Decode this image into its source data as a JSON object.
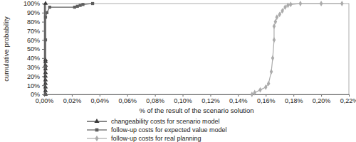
{
  "chart_data": {
    "type": "line",
    "x_label": "% of the result of the scenario solution",
    "y_label": "cumulative probability",
    "xlim": [
      0,
      0.22
    ],
    "xticks": [
      {
        "value": 0,
        "label": "0,00%"
      },
      {
        "value": 0.02,
        "label": "0,02%"
      },
      {
        "value": 0.04,
        "label": "0,04%"
      },
      {
        "value": 0.06,
        "label": "0,06%"
      },
      {
        "value": 0.08,
        "label": "0,08%"
      },
      {
        "value": 0.1,
        "label": "0,10%"
      },
      {
        "value": 0.12,
        "label": "0,12%"
      },
      {
        "value": 0.14,
        "label": "0,14%"
      },
      {
        "value": 0.16,
        "label": "0,16%"
      },
      {
        "value": 0.18,
        "label": "0,18%"
      },
      {
        "value": 0.2,
        "label": "0,20%"
      },
      {
        "value": 0.22,
        "label": "0,22%"
      }
    ],
    "ylim": [
      0,
      100
    ],
    "yticks": [
      {
        "value": 0,
        "label": "0%"
      },
      {
        "value": 10,
        "label": "10%"
      },
      {
        "value": 20,
        "label": "20%"
      },
      {
        "value": 30,
        "label": "30%"
      },
      {
        "value": 40,
        "label": "40%"
      },
      {
        "value": 50,
        "label": "50%"
      },
      {
        "value": 60,
        "label": "60%"
      },
      {
        "value": 70,
        "label": "70%"
      },
      {
        "value": 80,
        "label": "80%"
      },
      {
        "value": 90,
        "label": "90%"
      },
      {
        "value": 100,
        "label": "100%"
      }
    ],
    "grid": false,
    "legend": "bottom",
    "series": [
      {
        "name": "changeability costs for scenario model",
        "color": "#3a3a3a",
        "marker": "triangle",
        "line_style": "solid",
        "x": [
          0.001,
          0.001,
          0.001,
          0.001,
          0.001,
          0.001,
          0.001,
          0.001,
          0.001,
          0.001,
          0.001,
          0.001
        ],
        "values": [
          0,
          4,
          8,
          12,
          16,
          20,
          24,
          28,
          32,
          36,
          38,
          100
        ]
      },
      {
        "name": "follow-up costs for expected value model",
        "color": "#5e5e5e",
        "marker": "square",
        "line_style": "solid",
        "x": [
          0.001,
          0.001,
          0.001,
          0.001,
          0.002,
          0.004,
          0.022,
          0.024,
          0.026,
          0.028,
          0.035
        ],
        "values": [
          0,
          30,
          60,
          85,
          90,
          96,
          96,
          97,
          98,
          99,
          100
        ]
      },
      {
        "name": "follow-up costs for real planning",
        "color": "#ababab",
        "marker": "diamond",
        "line_style": "solid",
        "x": [
          0.15,
          0.152,
          0.156,
          0.16,
          0.162,
          0.164,
          0.165,
          0.166,
          0.166,
          0.167,
          0.168,
          0.17,
          0.172,
          0.174,
          0.176,
          0.178,
          0.185,
          0.2,
          0.215
        ],
        "values": [
          0,
          2,
          5,
          8,
          12,
          25,
          40,
          60,
          75,
          80,
          85,
          88,
          92,
          96,
          98,
          99,
          100,
          100,
          100
        ]
      }
    ]
  }
}
